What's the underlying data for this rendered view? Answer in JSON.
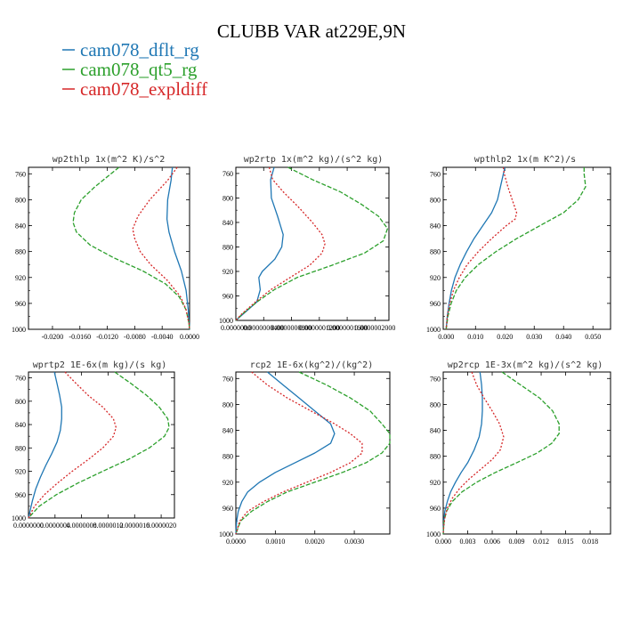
{
  "figure_title": "CLUBB VAR at229E,9N",
  "legend": [
    {
      "name": "cam078_dflt_rg",
      "color": "#1f77b4",
      "dash": "solid"
    },
    {
      "name": "cam078_qt5_rg",
      "color": "#2ca02c",
      "dash": "dashed"
    },
    {
      "name": "cam078_expldiff",
      "color": "#d62728",
      "dash": "dotted"
    }
  ],
  "colors": {
    "dflt": "#1f77b4",
    "qt5": "#2ca02c",
    "expl": "#d62728"
  },
  "chart_data": [
    {
      "type": "line",
      "title": "wp2thlp  1x(m^2 K)/s^2",
      "xlim": [
        -0.0235,
        0.0
      ],
      "ylim": [
        750,
        1000
      ],
      "xticks": [
        -0.02,
        -0.016,
        -0.012,
        -0.008,
        -0.004,
        0.0
      ],
      "xtick_labels": [
        "-0.0200",
        "-0.0160",
        "-0.0120",
        "-0.0080",
        "-0.0040",
        "0.0000"
      ],
      "yticks": [
        760,
        800,
        840,
        880,
        920,
        960,
        1000
      ],
      "series": [
        {
          "name": "cam078_dflt_rg",
          "p": [
            750,
            770,
            800,
            830,
            850,
            880,
            910,
            940,
            970,
            1000
          ],
          "x": [
            -0.0025,
            -0.0027,
            -0.0032,
            -0.0033,
            -0.003,
            -0.0022,
            -0.0012,
            -0.0005,
            -0.0002,
            0.0
          ]
        },
        {
          "name": "cam078_qt5_rg",
          "p": [
            750,
            780,
            800,
            820,
            835,
            850,
            870,
            890,
            910,
            930,
            950,
            970,
            990,
            1000
          ],
          "x": [
            -0.0103,
            -0.0138,
            -0.0158,
            -0.0168,
            -0.017,
            -0.0165,
            -0.0145,
            -0.011,
            -0.0068,
            -0.0035,
            -0.0015,
            -0.0005,
            -0.0001,
            0.0
          ]
        },
        {
          "name": "cam078_expldiff",
          "p": [
            750,
            770,
            800,
            825,
            845,
            860,
            880,
            900,
            925,
            950,
            970,
            990,
            1000
          ],
          "x": [
            -0.0018,
            -0.0032,
            -0.0058,
            -0.0075,
            -0.0083,
            -0.008,
            -0.0072,
            -0.0057,
            -0.0032,
            -0.0013,
            -0.0005,
            -0.0001,
            0.0
          ]
        }
      ]
    },
    {
      "type": "line",
      "title": "wp2rtp  1x(m^2 kg)/(s^2 kg)",
      "xlim": [
        0.0,
        2.2e-07
      ],
      "ylim": [
        750,
        1000
      ],
      "xticks": [
        0,
        4e-08,
        8e-08,
        1.2e-07,
        1.6e-07,
        2e-07
      ],
      "xtick_labels": [
        "0.0000000",
        "0.0000000400",
        "0.0000000800",
        "0.0000001200",
        "0.0000001600",
        "0.0000002000"
      ],
      "yticks": [
        760,
        800,
        840,
        880,
        920,
        960,
        1000
      ],
      "series": [
        {
          "name": "cam078_dflt_rg",
          "p": [
            750,
            770,
            800,
            830,
            860,
            880,
            900,
            920,
            930,
            950,
            970,
            985,
            1000
          ],
          "x": [
            5.5e-08,
            5e-08,
            5.1e-08,
            6e-08,
            6.8e-08,
            6.6e-08,
            5.6e-08,
            3.8e-08,
            3.3e-08,
            3.5e-08,
            3e-08,
            1.5e-08,
            0.0
          ]
        },
        {
          "name": "cam078_qt5_rg",
          "p": [
            750,
            770,
            790,
            810,
            830,
            850,
            870,
            890,
            910,
            930,
            950,
            970,
            990,
            1000
          ],
          "x": [
            7.5e-08,
            1.1e-07,
            1.5e-07,
            1.8e-07,
            2.05e-07,
            2.18e-07,
            2.12e-07,
            1.85e-07,
            1.38e-07,
            8.8e-08,
            5.5e-08,
            3e-08,
            9e-09,
            0.0
          ]
        },
        {
          "name": "cam078_expldiff",
          "p": [
            750,
            770,
            790,
            815,
            840,
            860,
            875,
            890,
            910,
            930,
            950,
            970,
            990,
            1000
          ],
          "x": [
            4.8e-08,
            5.3e-08,
            6.8e-08,
            9e-08,
            1.1e-07,
            1.24e-07,
            1.28e-07,
            1.24e-07,
            1.06e-07,
            7.8e-08,
            5e-08,
            2.8e-08,
            8e-09,
            0.0
          ]
        }
      ]
    },
    {
      "type": "line",
      "title": "wpthlp2  1x(m K^2)/s",
      "xlim": [
        -0.001,
        0.056
      ],
      "ylim": [
        750,
        1000
      ],
      "xticks": [
        0.0,
        0.01,
        0.02,
        0.03,
        0.04,
        0.05
      ],
      "xtick_labels": [
        "0.000",
        "0.010",
        "0.020",
        "0.030",
        "0.040",
        "0.050"
      ],
      "yticks": [
        760,
        800,
        840,
        880,
        920,
        960,
        1000
      ],
      "series": [
        {
          "name": "cam078_dflt_rg",
          "p": [
            750,
            760,
            780,
            800,
            820,
            840,
            860,
            880,
            900,
            920,
            940,
            960,
            980,
            1000
          ],
          "x": [
            0.02,
            0.0195,
            0.0185,
            0.0175,
            0.0155,
            0.0125,
            0.0095,
            0.007,
            0.0048,
            0.003,
            0.0018,
            0.001,
            0.0004,
            0.0
          ]
        },
        {
          "name": "cam078_qt5_rg",
          "p": [
            750,
            760,
            780,
            800,
            820,
            840,
            860,
            880,
            900,
            920,
            940,
            960,
            980,
            1000
          ],
          "x": [
            0.047,
            0.047,
            0.0475,
            0.045,
            0.04,
            0.032,
            0.024,
            0.017,
            0.011,
            0.0065,
            0.0035,
            0.0017,
            0.0006,
            0.0
          ]
        },
        {
          "name": "cam078_expldiff",
          "p": [
            750,
            760,
            780,
            800,
            820,
            830,
            840,
            860,
            880,
            900,
            920,
            940,
            960,
            980,
            1000
          ],
          "x": [
            0.0195,
            0.0198,
            0.021,
            0.0225,
            0.024,
            0.0235,
            0.0205,
            0.0155,
            0.011,
            0.0072,
            0.0045,
            0.0025,
            0.0012,
            0.0004,
            0.0
          ]
        }
      ]
    },
    {
      "type": "line",
      "title": "wprtp2  1E-6x(m kg)/(s kg)",
      "xlim": [
        0.0,
        2.2e-06
      ],
      "ylim": [
        750,
        1000
      ],
      "xticks": [
        0,
        4e-07,
        8e-07,
        1.2e-06,
        1.6e-06,
        2e-06
      ],
      "xtick_labels": [
        "0.0000000",
        "0.0000004",
        "0.0000008",
        "0.0000012",
        "0.0000016",
        "0.0000020"
      ],
      "yticks": [
        760,
        800,
        840,
        880,
        920,
        960,
        1000
      ],
      "series": [
        {
          "name": "cam078_dflt_rg",
          "p": [
            750,
            770,
            790,
            810,
            830,
            850,
            870,
            890,
            910,
            930,
            950,
            970,
            985,
            1000
          ],
          "x": [
            3.9e-07,
            4.3e-07,
            4.7e-07,
            5e-07,
            5e-07,
            4.8e-07,
            4.3e-07,
            3.5e-07,
            2.6e-07,
            1.8e-07,
            1.1e-07,
            6e-08,
            3e-08,
            0.0
          ]
        },
        {
          "name": "cam078_qt5_rg",
          "p": [
            750,
            770,
            790,
            810,
            830,
            845,
            860,
            880,
            900,
            920,
            940,
            960,
            980,
            1000
          ],
          "x": [
            1.3e-06,
            1.55e-06,
            1.78e-06,
            1.97e-06,
            2.1e-06,
            2.12e-06,
            2.05e-06,
            1.82e-06,
            1.5e-06,
            1.12e-06,
            7.5e-07,
            4.2e-07,
            1.6e-07,
            0.0
          ]
        },
        {
          "name": "cam078_expldiff",
          "p": [
            750,
            770,
            790,
            810,
            830,
            845,
            860,
            880,
            900,
            920,
            940,
            960,
            980,
            1000
          ],
          "x": [
            5.5e-07,
            7.2e-07,
            9e-07,
            1.12e-06,
            1.28e-06,
            1.32e-06,
            1.28e-06,
            1.12e-06,
            9e-07,
            6.6e-07,
            4.4e-07,
            2.4e-07,
            9e-08,
            0.0
          ]
        }
      ]
    },
    {
      "type": "line",
      "title": "rcp2  1E-6x(kg^2)/(kg^2)",
      "xlim": [
        0.0,
        0.0039
      ],
      "ylim": [
        750,
        1000
      ],
      "xticks": [
        0.0,
        0.001,
        0.002,
        0.003
      ],
      "xtick_labels": [
        "0.0000",
        "0.0010",
        "0.0020",
        "0.0030"
      ],
      "yticks": [
        760,
        800,
        840,
        880,
        920,
        960,
        1000
      ],
      "series": [
        {
          "name": "cam078_dflt_rg",
          "p": [
            750,
            770,
            790,
            810,
            830,
            845,
            860,
            875,
            890,
            905,
            920,
            935,
            950,
            965,
            980,
            1000
          ],
          "x": [
            0.0008,
            0.0012,
            0.0016,
            0.002,
            0.0024,
            0.0025,
            0.0024,
            0.002,
            0.0015,
            0.001,
            0.0006,
            0.0003,
            0.00015,
            6e-05,
            2e-05,
            0.0
          ]
        },
        {
          "name": "cam078_qt5_rg",
          "p": [
            750,
            770,
            790,
            810,
            830,
            845,
            860,
            875,
            890,
            905,
            920,
            935,
            950,
            965,
            980,
            1000
          ],
          "x": [
            0.0016,
            0.0023,
            0.0029,
            0.0034,
            0.0037,
            0.0039,
            0.0039,
            0.0037,
            0.0033,
            0.0027,
            0.002,
            0.0013,
            0.0008,
            0.0004,
            0.00012,
            0.0
          ]
        },
        {
          "name": "cam078_expldiff",
          "p": [
            750,
            770,
            790,
            810,
            830,
            845,
            860,
            875,
            890,
            905,
            920,
            935,
            950,
            965,
            980,
            1000
          ],
          "x": [
            0.0004,
            0.0008,
            0.0013,
            0.0019,
            0.0025,
            0.0029,
            0.0032,
            0.0032,
            0.0029,
            0.0024,
            0.0018,
            0.0012,
            0.0007,
            0.0003,
            0.0001,
            0.0
          ]
        }
      ]
    },
    {
      "type": "line",
      "title": "wp2rcp  1E-3x(m^2 kg)/(s^2 kg)",
      "xlim": [
        0.0,
        0.0205
      ],
      "ylim": [
        750,
        1000
      ],
      "xticks": [
        0.0,
        0.003,
        0.006,
        0.009,
        0.012,
        0.015,
        0.018
      ],
      "xtick_labels": [
        "0.000",
        "0.003",
        "0.006",
        "0.009",
        "0.012",
        "0.015",
        "0.018"
      ],
      "yticks": [
        760,
        800,
        840,
        880,
        920,
        960,
        1000
      ],
      "series": [
        {
          "name": "cam078_dflt_rg",
          "p": [
            750,
            770,
            790,
            810,
            830,
            850,
            870,
            890,
            905,
            920,
            935,
            950,
            965,
            980,
            1000
          ],
          "x": [
            0.0045,
            0.0047,
            0.0048,
            0.0048,
            0.0047,
            0.0044,
            0.0038,
            0.003,
            0.0022,
            0.0015,
            0.0009,
            0.0005,
            0.0002,
            8e-05,
            0.0
          ]
        },
        {
          "name": "cam078_qt5_rg",
          "p": [
            750,
            770,
            790,
            810,
            830,
            845,
            860,
            875,
            890,
            905,
            920,
            935,
            950,
            965,
            980,
            1000
          ],
          "x": [
            0.0072,
            0.0095,
            0.0118,
            0.0134,
            0.0142,
            0.0142,
            0.0133,
            0.0115,
            0.009,
            0.0064,
            0.0041,
            0.0023,
            0.0011,
            0.0004,
            0.0001,
            0.0
          ]
        },
        {
          "name": "cam078_expldiff",
          "p": [
            750,
            770,
            790,
            810,
            830,
            850,
            870,
            885,
            900,
            915,
            930,
            945,
            960,
            975,
            990,
            1000
          ],
          "x": [
            0.0035,
            0.0041,
            0.005,
            0.006,
            0.0069,
            0.0074,
            0.007,
            0.006,
            0.0046,
            0.0032,
            0.002,
            0.0011,
            0.0005,
            0.0002,
            5e-05,
            0.0
          ]
        }
      ]
    }
  ]
}
